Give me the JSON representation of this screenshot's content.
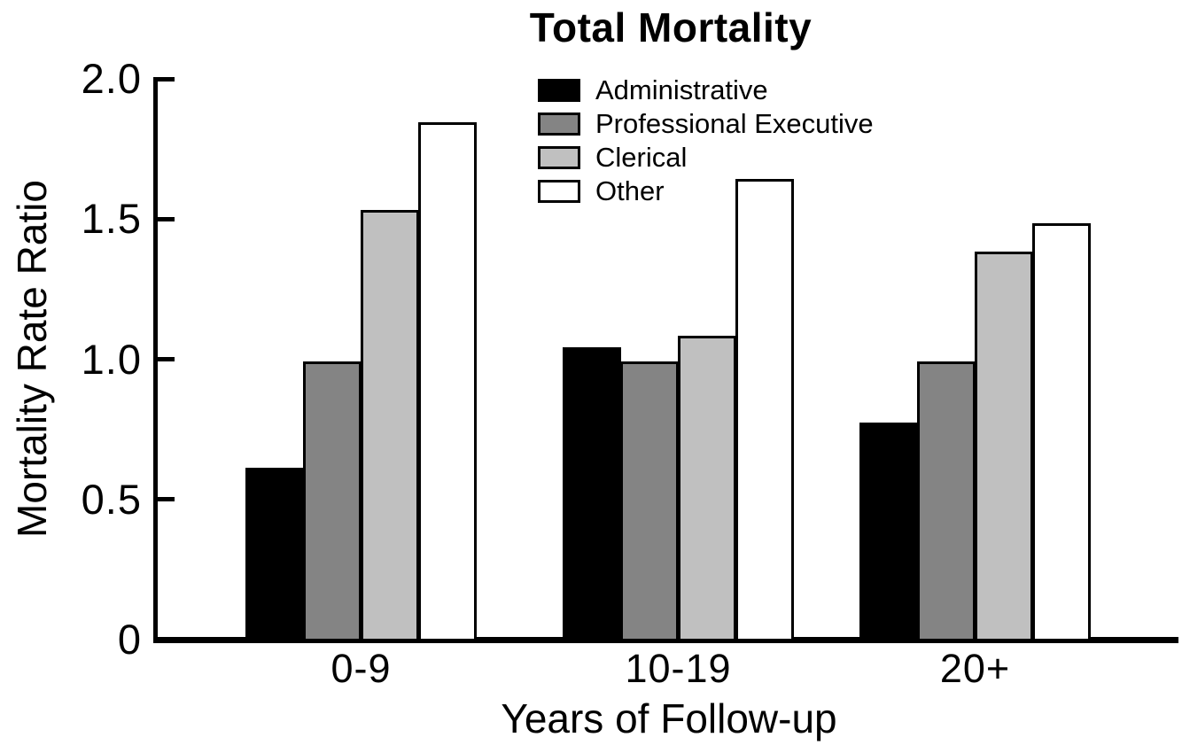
{
  "chart_data": {
    "type": "bar",
    "title": "Total Mortality",
    "xlabel": "Years of Follow-up",
    "ylabel": "Mortality Rate Ratio",
    "categories": [
      "0-9",
      "10-19",
      "20+"
    ],
    "series": [
      {
        "name": "Administrative",
        "color": "#000000",
        "values": [
          0.62,
          1.05,
          0.78
        ]
      },
      {
        "name": "Professional Executive",
        "color": "#848484",
        "values": [
          1.0,
          1.0,
          1.0
        ]
      },
      {
        "name": "Clerical",
        "color": "#c0c0c0",
        "values": [
          1.54,
          1.09,
          1.39
        ]
      },
      {
        "name": "Other",
        "color": "#ffffff",
        "values": [
          1.85,
          1.65,
          1.49
        ]
      }
    ],
    "ylim": [
      0,
      2.0
    ],
    "y_ticks": [
      {
        "value": 2.0,
        "label": "2.0"
      },
      {
        "value": 1.5,
        "label": "1.5"
      },
      {
        "value": 1.0,
        "label": "1.0"
      },
      {
        "value": 0.5,
        "label": "0.5"
      },
      {
        "value": 0.0,
        "label": "0"
      }
    ],
    "grid": false,
    "legend_position": "top-center-inside",
    "bar_border_color": "#000000",
    "axis_color": "#000000"
  }
}
